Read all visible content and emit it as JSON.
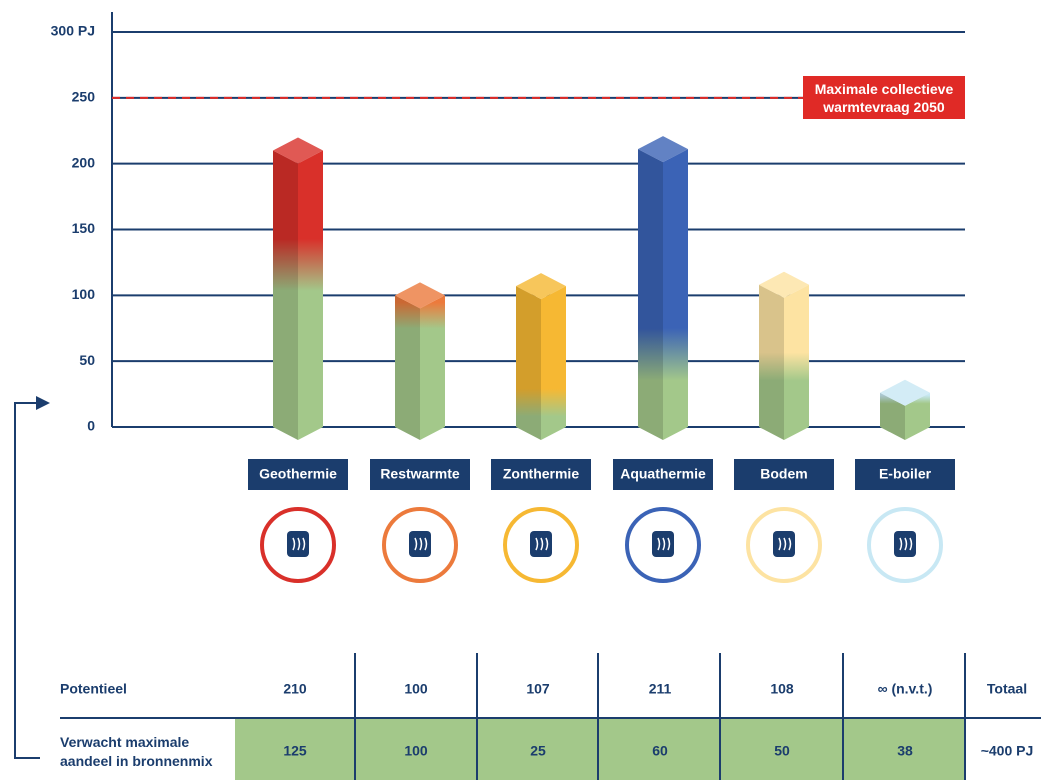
{
  "chart_data": {
    "type": "bar3d",
    "categories": [
      "Geothermie",
      "Restwarmte",
      "Zonthermie",
      "Aquathermie",
      "Bodem",
      "E-boiler"
    ],
    "values": [
      210,
      100,
      107,
      211,
      108,
      26
    ],
    "colors": [
      "#d9302a",
      "#ec7a3c",
      "#f6b833",
      "#3b63b6",
      "#fde3a2",
      "#c8e8f4"
    ],
    "green": "#a3c88a",
    "ylim": [
      0,
      300
    ],
    "yticks": [
      0,
      50,
      100,
      150,
      200,
      250,
      {
        "value": 300,
        "label": "300 PJ"
      }
    ],
    "grid": true,
    "reference_line": {
      "value": 250,
      "label": "Maximale collectieve warmtevraag 2050",
      "color": "#e02a26"
    }
  },
  "table": {
    "rows": [
      {
        "label": "Potentieel",
        "cells": [
          210,
          100,
          107,
          211,
          108,
          "∞ (n.v.t.)"
        ],
        "total": "Totaal"
      },
      {
        "label": "Verwacht maximale aandeel in bronnenmix",
        "cells": [
          125,
          100,
          25,
          60,
          50,
          38
        ],
        "total": "~400 PJ"
      }
    ]
  }
}
